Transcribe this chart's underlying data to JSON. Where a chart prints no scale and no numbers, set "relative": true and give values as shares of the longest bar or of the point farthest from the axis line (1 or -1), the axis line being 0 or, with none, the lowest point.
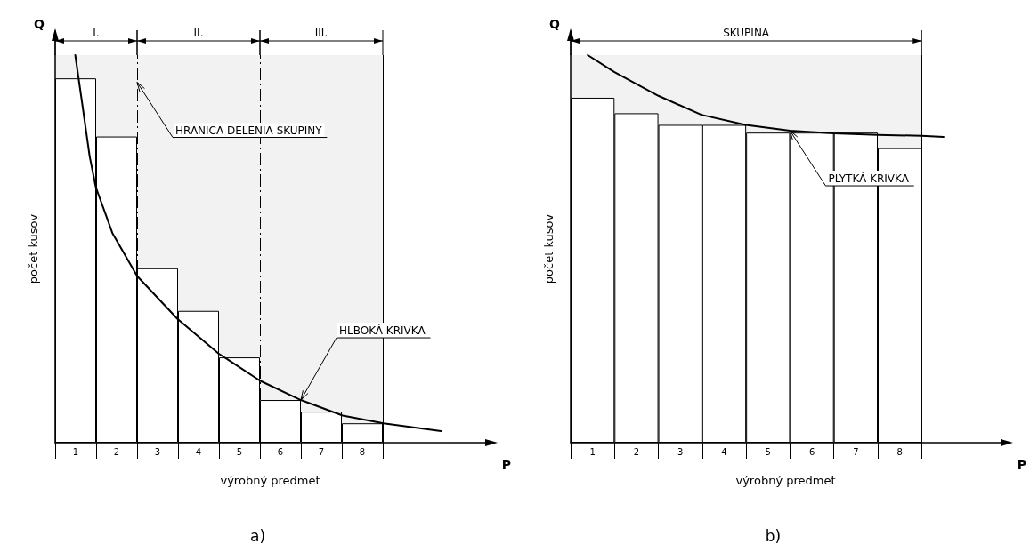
{
  "chart_data": [
    {
      "type": "bar",
      "title": "a)",
      "xlabel": "výrobný predmet",
      "ylabel": "počet kusov",
      "relative": true,
      "marker": "none",
      "x": [
        1,
        2,
        3,
        4,
        5,
        6,
        7,
        8
      ],
      "xlim": [
        0.5,
        11
      ],
      "xticks": [
        1,
        2,
        3,
        4,
        5,
        6,
        7,
        8
      ],
      "series": [
        {
          "color": "#000000",
          "values": [
            0.94,
            0.79,
            0.45,
            0.34,
            0.22,
            0.11,
            0.08,
            0.05
          ]
        },
        {
          "type": "line",
          "color": "#000000",
          "x": [
            0.99,
            1.18,
            1.34,
            1.49,
            1.9,
            2.5,
            3.48,
            4.49,
            5.5,
            6.5,
            7.52,
            8.52,
            9.92
          ],
          "values": [
            1.0,
            0.86,
            0.74,
            0.66,
            0.54,
            0.43,
            0.32,
            0.23,
            0.16,
            0.11,
            0.07,
            0.05,
            0.03
          ]
        }
      ],
      "ref_lines": [
        {
          "axis": "x",
          "value": 2.5,
          "label": null,
          "line_style": "dashed"
        },
        {
          "axis": "x",
          "value": 5.5,
          "label": null,
          "line_style": "dashed"
        },
        {
          "axis": "x",
          "value": 8.5,
          "label": null,
          "line_style": "solid"
        }
      ],
      "bands": [
        {
          "axis": "x",
          "from": 0.5,
          "to": 2.5,
          "label": "I."
        },
        {
          "axis": "x",
          "from": 2.5,
          "to": 5.5,
          "label": "II."
        },
        {
          "axis": "x",
          "from": 5.5,
          "to": 8.5,
          "label": "III."
        }
      ],
      "annotations": [
        "Q",
        "P",
        {
          "text": "HRANICA DELENIA SKUPINY",
          "x": 2.5,
          "y": 0.93
        },
        {
          "text": "HLBOKÁ KRIVKA",
          "x": 6.5,
          "y": 0.11
        }
      ]
    },
    {
      "type": "bar",
      "title": "b)",
      "xlabel": "výrobný predmet",
      "ylabel": "počet kusov",
      "relative": true,
      "marker": "none",
      "x": [
        1,
        2,
        3,
        4,
        5,
        6,
        7,
        8
      ],
      "xlim": [
        0.5,
        10.3
      ],
      "xticks": [
        1,
        2,
        3,
        4,
        5,
        6,
        7,
        8
      ],
      "series": [
        {
          "color": "#000000",
          "values": [
            0.89,
            0.85,
            0.82,
            0.82,
            0.8,
            0.8,
            0.8,
            0.76
          ]
        },
        {
          "type": "line",
          "color": "#000000",
          "x": [
            0.89,
            1.5,
            2.5,
            3.48,
            4.49,
            5.5,
            6.5,
            7.5,
            8.5,
            9.0
          ],
          "values": [
            1.0,
            0.956,
            0.895,
            0.846,
            0.82,
            0.805,
            0.798,
            0.794,
            0.792,
            0.789
          ]
        }
      ],
      "ref_lines": [
        {
          "axis": "x",
          "value": 8.5,
          "label": null,
          "line_style": "solid"
        }
      ],
      "bands": [
        {
          "axis": "x",
          "from": 0.5,
          "to": 8.5,
          "label": "SKUPINA"
        }
      ],
      "annotations": [
        "Q",
        "P",
        {
          "text": "PLYTKÁ KRIVKA",
          "x": 5.5,
          "y": 0.805
        }
      ]
    }
  ]
}
